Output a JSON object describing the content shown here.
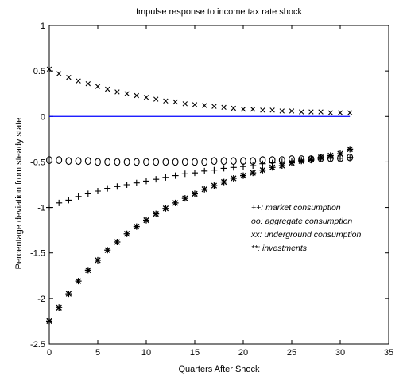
{
  "chart_data": {
    "type": "scatter",
    "title": "Impulse response to income tax rate shock",
    "xlabel": "Quarters After Shock",
    "ylabel": "Percentage deviation from steady state",
    "xlim": [
      0,
      35
    ],
    "ylim": [
      -2.5,
      1
    ],
    "xticks": [
      "0",
      "5",
      "10",
      "15",
      "20",
      "25",
      "30",
      "35"
    ],
    "yticks": [
      "1",
      "0.5",
      "0",
      "-0.5",
      "-1",
      "-1.5",
      "-2",
      "-2.5"
    ],
    "grid": false,
    "legend_position": "inside right",
    "reference_line": {
      "y": 0,
      "color": "#0000ff"
    },
    "series": [
      {
        "name": "++: market consumption",
        "marker": "plus",
        "x": [
          0,
          1,
          2,
          3,
          4,
          5,
          6,
          7,
          8,
          9,
          10,
          11,
          12,
          13,
          14,
          15,
          16,
          17,
          18,
          19,
          20,
          21,
          22,
          23,
          24,
          25,
          26,
          27,
          28,
          29,
          30,
          31
        ],
        "values": [
          -1.0,
          -0.95,
          -0.92,
          -0.88,
          -0.85,
          -0.82,
          -0.79,
          -0.77,
          -0.75,
          -0.73,
          -0.71,
          -0.69,
          -0.67,
          -0.65,
          -0.63,
          -0.62,
          -0.6,
          -0.59,
          -0.57,
          -0.56,
          -0.55,
          -0.54,
          -0.52,
          -0.51,
          -0.5,
          -0.49,
          -0.48,
          -0.48,
          -0.47,
          -0.46,
          -0.46,
          -0.45
        ]
      },
      {
        "name": "oo: aggregate consumption",
        "marker": "circle",
        "x": [
          0,
          1,
          2,
          3,
          4,
          5,
          6,
          7,
          8,
          9,
          10,
          11,
          12,
          13,
          14,
          15,
          16,
          17,
          18,
          19,
          20,
          21,
          22,
          23,
          24,
          25,
          26,
          27,
          28,
          29,
          30,
          31
        ],
        "values": [
          -0.48,
          -0.48,
          -0.49,
          -0.49,
          -0.49,
          -0.5,
          -0.5,
          -0.5,
          -0.5,
          -0.5,
          -0.5,
          -0.5,
          -0.5,
          -0.5,
          -0.5,
          -0.5,
          -0.5,
          -0.49,
          -0.49,
          -0.49,
          -0.49,
          -0.49,
          -0.48,
          -0.48,
          -0.48,
          -0.47,
          -0.47,
          -0.47,
          -0.46,
          -0.46,
          -0.46,
          -0.45
        ]
      },
      {
        "name": "xx: underground consumption",
        "marker": "x",
        "x": [
          0,
          1,
          2,
          3,
          4,
          5,
          6,
          7,
          8,
          9,
          10,
          11,
          12,
          13,
          14,
          15,
          16,
          17,
          18,
          19,
          20,
          21,
          22,
          23,
          24,
          25,
          26,
          27,
          28,
          29,
          30,
          31
        ],
        "values": [
          0.52,
          0.47,
          0.43,
          0.39,
          0.36,
          0.33,
          0.3,
          0.27,
          0.25,
          0.23,
          0.21,
          0.19,
          0.17,
          0.16,
          0.14,
          0.13,
          0.12,
          0.11,
          0.1,
          0.09,
          0.08,
          0.08,
          0.07,
          0.07,
          0.06,
          0.06,
          0.05,
          0.05,
          0.05,
          0.04,
          0.04,
          0.04
        ]
      },
      {
        "name": "**: investments",
        "marker": "star",
        "x": [
          0,
          1,
          2,
          3,
          4,
          5,
          6,
          7,
          8,
          9,
          10,
          11,
          12,
          13,
          14,
          15,
          16,
          17,
          18,
          19,
          20,
          21,
          22,
          23,
          24,
          25,
          26,
          27,
          28,
          29,
          30,
          31
        ],
        "values": [
          -2.25,
          -2.1,
          -1.95,
          -1.81,
          -1.69,
          -1.58,
          -1.47,
          -1.38,
          -1.29,
          -1.21,
          -1.14,
          -1.07,
          -1.01,
          -0.95,
          -0.9,
          -0.85,
          -0.8,
          -0.76,
          -0.72,
          -0.68,
          -0.65,
          -0.62,
          -0.59,
          -0.56,
          -0.54,
          -0.51,
          -0.49,
          -0.47,
          -0.45,
          -0.43,
          -0.41,
          -0.36
        ]
      }
    ]
  }
}
